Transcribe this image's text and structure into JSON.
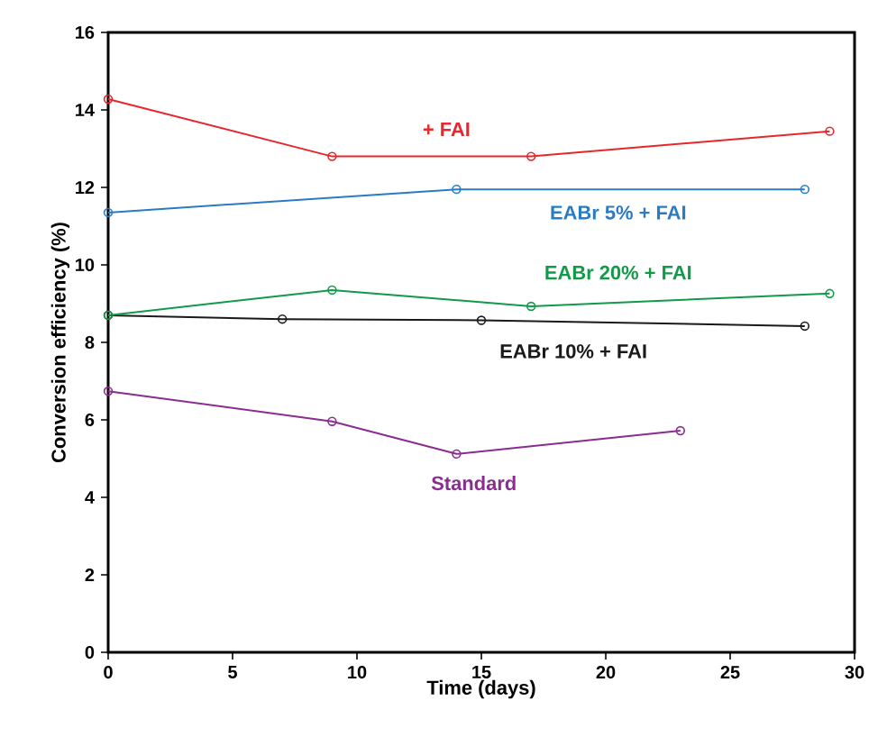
{
  "chart_data": {
    "type": "line",
    "xlabel": "Time (days)",
    "ylabel": "Conversion efficiency (%)",
    "xlim": [
      0,
      30
    ],
    "xticks": [
      0,
      5,
      10,
      15,
      20,
      25,
      30
    ],
    "ylim": [
      0,
      16
    ],
    "yticks": [
      0,
      2,
      4,
      6,
      8,
      10,
      12,
      14,
      16
    ],
    "marker": "circle",
    "line_style": "solid",
    "grid": false,
    "legend": false,
    "series": [
      {
        "name": "+ FAI",
        "color": "#e8262b",
        "x": [
          0,
          9,
          17,
          29
        ],
        "values": [
          14.28,
          12.8,
          12.8,
          13.45
        ]
      },
      {
        "name": "EABr 5% + FAI",
        "color": "#2a7bc4",
        "x": [
          0,
          14,
          28
        ],
        "values": [
          11.35,
          11.95,
          11.95
        ]
      },
      {
        "name": "EABr 20% + FAI",
        "color": "#119a48",
        "x": [
          0,
          9,
          17,
          29
        ],
        "values": [
          8.7,
          9.35,
          8.93,
          9.26
        ]
      },
      {
        "name": "EABr 10% + FAI",
        "color": "#1a1a1a",
        "x": [
          0,
          7,
          15,
          28
        ],
        "values": [
          8.7,
          8.6,
          8.57,
          8.42
        ]
      },
      {
        "name": "Standard",
        "color": "#8b2c91",
        "x": [
          0,
          9,
          14,
          23
        ],
        "values": [
          6.74,
          5.96,
          5.12,
          5.72
        ]
      }
    ]
  }
}
